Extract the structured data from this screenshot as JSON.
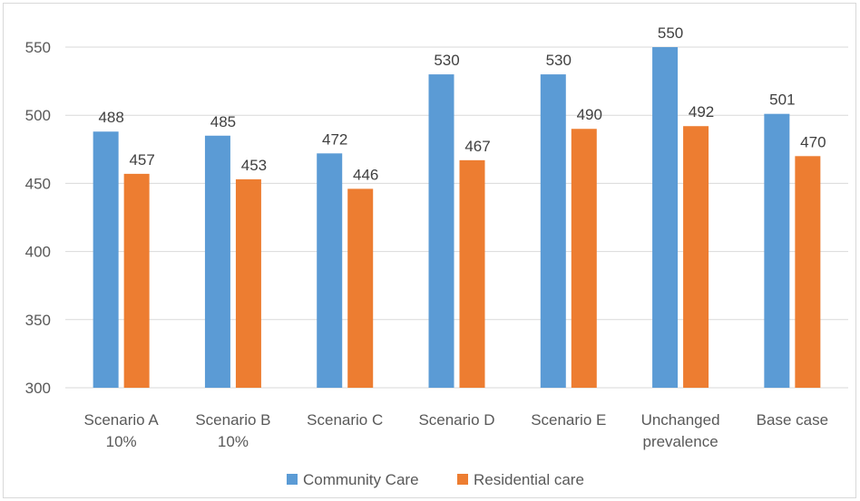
{
  "chart_data": {
    "type": "bar",
    "title": "",
    "xlabel": "",
    "ylabel": "",
    "ylim": [
      300,
      550
    ],
    "yticks": [
      300,
      350,
      400,
      450,
      500,
      550
    ],
    "grid": true,
    "legend_position": "bottom",
    "categories": [
      [
        "Scenario A",
        "10%"
      ],
      [
        "Scenario B",
        "10%"
      ],
      [
        "Scenario C"
      ],
      [
        "Scenario D"
      ],
      [
        "Scenario E"
      ],
      [
        "Unchanged",
        "prevalence"
      ],
      [
        "Base case"
      ]
    ],
    "series": [
      {
        "name": "Community Care",
        "color": "#5b9bd5",
        "values": [
          488,
          485,
          472,
          530,
          530,
          550,
          501
        ]
      },
      {
        "name": "Residential care",
        "color": "#ed7d31",
        "values": [
          457,
          453,
          446,
          467,
          490,
          492,
          470
        ]
      }
    ]
  }
}
